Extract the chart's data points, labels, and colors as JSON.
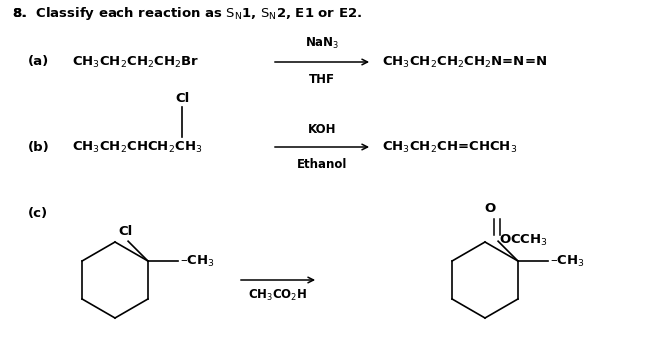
{
  "bg_color": "#ffffff",
  "text_color": "#000000",
  "fig_width": 6.68,
  "fig_height": 3.52,
  "dpi": 100,
  "title_num": "8.",
  "title_text": "  Classify each reaction as S",
  "title_sub1": "N",
  "title_after1": "1, S",
  "title_sub2": "N",
  "title_after2": "2, E1 or E2.",
  "a_label": "(a)",
  "a_reactant": "CH$_3$CH$_2$CH$_2$CH$_2$Br",
  "a_reagent_top": "NaN$_3$",
  "a_reagent_bot": "THF",
  "a_product": "CH$_3$CH$_2$CH$_2$CH$_2$N=N=N",
  "b_label": "(b)",
  "b_cl": "Cl",
  "b_reactant": "CH$_3$CH$_2$CHCH$_2$CH$_3$",
  "b_reagent_top": "KOH",
  "b_reagent_bot": "Ethanol",
  "b_product": "CH$_3$CH$_2$CH=CHCH$_3$",
  "c_label": "(c)",
  "c_cl": "Cl",
  "c_ch3": "–CH$_3$",
  "c_reagent": "CH$_3$CO$_2$H",
  "c_prod_o": "O",
  "c_prod_occh3": "OCCH$_3$",
  "c_prod_ch3": "–CH$_3$",
  "xlim": [
    0,
    6.68
  ],
  "ylim": [
    0,
    3.52
  ]
}
